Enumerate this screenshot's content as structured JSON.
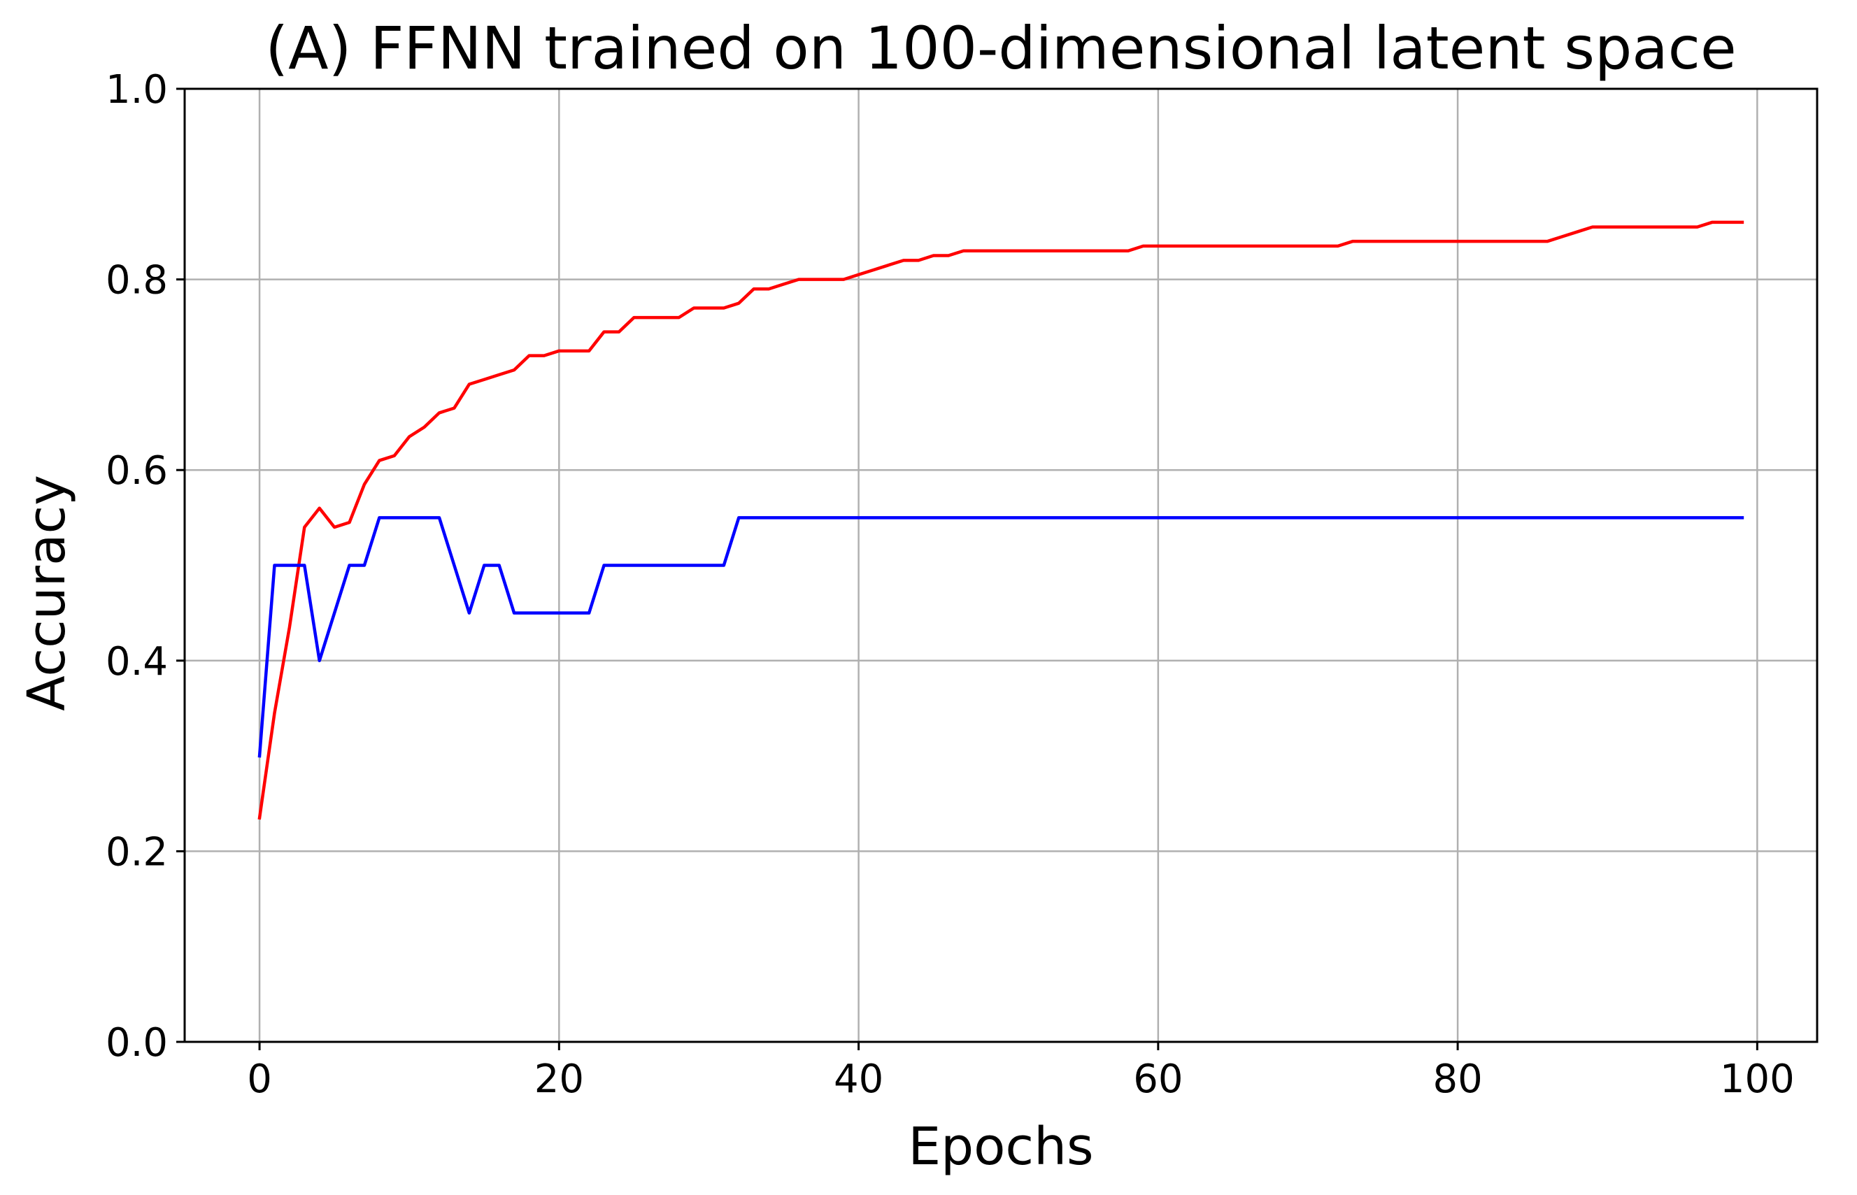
{
  "chart_data": {
    "type": "line",
    "title": "(A) FFNN trained on 100-dimensional latent space",
    "xlabel": "Epochs",
    "ylabel": "Accuracy",
    "xlim": [
      -5,
      104
    ],
    "ylim": [
      0.0,
      1.0
    ],
    "xticks": [
      0,
      20,
      40,
      60,
      80,
      100
    ],
    "xtick_labels": [
      "0",
      "20",
      "40",
      "60",
      "80",
      "100"
    ],
    "yticks": [
      0.0,
      0.2,
      0.4,
      0.6,
      0.8,
      1.0
    ],
    "ytick_labels": [
      "0.0",
      "0.2",
      "0.4",
      "0.6",
      "0.8",
      "1.0"
    ],
    "grid": true,
    "legend": "none",
    "x": [
      0,
      1,
      2,
      3,
      4,
      5,
      6,
      7,
      8,
      9,
      10,
      11,
      12,
      13,
      14,
      15,
      16,
      17,
      18,
      19,
      20,
      21,
      22,
      23,
      24,
      25,
      26,
      27,
      28,
      29,
      30,
      31,
      32,
      33,
      34,
      35,
      36,
      37,
      38,
      39,
      40,
      41,
      42,
      43,
      44,
      45,
      46,
      47,
      48,
      49,
      50,
      51,
      52,
      53,
      54,
      55,
      56,
      57,
      58,
      59,
      60,
      61,
      62,
      63,
      64,
      65,
      66,
      67,
      68,
      69,
      70,
      71,
      72,
      73,
      74,
      75,
      76,
      77,
      78,
      79,
      80,
      81,
      82,
      83,
      84,
      85,
      86,
      87,
      88,
      89,
      90,
      91,
      92,
      93,
      94,
      95,
      96,
      97,
      98,
      99
    ],
    "series": [
      {
        "color": "#ff0000",
        "values": [
          0.235,
          0.345,
          0.435,
          0.54,
          0.56,
          0.54,
          0.545,
          0.585,
          0.61,
          0.615,
          0.635,
          0.645,
          0.66,
          0.665,
          0.69,
          0.695,
          0.7,
          0.705,
          0.72,
          0.72,
          0.725,
          0.725,
          0.725,
          0.745,
          0.745,
          0.76,
          0.76,
          0.76,
          0.76,
          0.77,
          0.77,
          0.77,
          0.775,
          0.79,
          0.79,
          0.795,
          0.8,
          0.8,
          0.8,
          0.8,
          0.805,
          0.81,
          0.815,
          0.82,
          0.82,
          0.825,
          0.825,
          0.83,
          0.83,
          0.83,
          0.83,
          0.83,
          0.83,
          0.83,
          0.83,
          0.83,
          0.83,
          0.83,
          0.83,
          0.835,
          0.835,
          0.835,
          0.835,
          0.835,
          0.835,
          0.835,
          0.835,
          0.835,
          0.835,
          0.835,
          0.835,
          0.835,
          0.835,
          0.84,
          0.84,
          0.84,
          0.84,
          0.84,
          0.84,
          0.84,
          0.84,
          0.84,
          0.84,
          0.84,
          0.84,
          0.84,
          0.84,
          0.845,
          0.85,
          0.855,
          0.855,
          0.855,
          0.855,
          0.855,
          0.855,
          0.855,
          0.855,
          0.86,
          0.86,
          0.86
        ]
      },
      {
        "color": "#0000ff",
        "values": [
          0.3,
          0.5,
          0.5,
          0.5,
          0.4,
          0.45,
          0.5,
          0.5,
          0.55,
          0.55,
          0.55,
          0.55,
          0.55,
          0.5,
          0.45,
          0.5,
          0.5,
          0.45,
          0.45,
          0.45,
          0.45,
          0.45,
          0.45,
          0.5,
          0.5,
          0.5,
          0.5,
          0.5,
          0.5,
          0.5,
          0.5,
          0.5,
          0.55,
          0.55,
          0.55,
          0.55,
          0.55,
          0.55,
          0.55,
          0.55,
          0.55,
          0.55,
          0.55,
          0.55,
          0.55,
          0.55,
          0.55,
          0.55,
          0.55,
          0.55,
          0.55,
          0.55,
          0.55,
          0.55,
          0.55,
          0.55,
          0.55,
          0.55,
          0.55,
          0.55,
          0.55,
          0.55,
          0.55,
          0.55,
          0.55,
          0.55,
          0.55,
          0.55,
          0.55,
          0.55,
          0.55,
          0.55,
          0.55,
          0.55,
          0.55,
          0.55,
          0.55,
          0.55,
          0.55,
          0.55,
          0.55,
          0.55,
          0.55,
          0.55,
          0.55,
          0.55,
          0.55,
          0.55,
          0.55,
          0.55,
          0.55,
          0.55,
          0.55,
          0.55,
          0.55,
          0.55,
          0.55,
          0.55,
          0.55,
          0.55
        ]
      }
    ]
  }
}
